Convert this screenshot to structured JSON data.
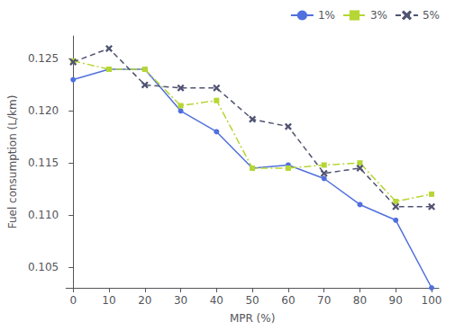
{
  "chart_data": {
    "type": "line",
    "xlabel": "MPR (%)",
    "ylabel": "Fuel consumption (L/km)",
    "x": [
      0,
      10,
      20,
      30,
      40,
      50,
      60,
      70,
      80,
      90,
      100
    ],
    "series": [
      {
        "name": "1%",
        "marker": "circle",
        "line_style": "solid",
        "values": [
          0.123,
          0.124,
          0.124,
          0.12,
          0.118,
          0.1145,
          0.1148,
          0.1135,
          0.111,
          0.1095,
          0.103
        ]
      },
      {
        "name": "3%",
        "marker": "square",
        "line_style": "dashdot",
        "values": [
          0.1248,
          0.124,
          0.124,
          0.1205,
          0.121,
          0.1145,
          0.1145,
          0.1148,
          0.115,
          0.1113,
          0.112
        ]
      },
      {
        "name": "5%",
        "marker": "x",
        "line_style": "dashed",
        "values": [
          0.1247,
          0.126,
          0.1225,
          0.1222,
          0.1222,
          0.1192,
          0.1185,
          0.114,
          0.1145,
          0.1108,
          0.1108
        ]
      }
    ],
    "xlim": [
      -2,
      102
    ],
    "xticks": [
      0,
      10,
      20,
      30,
      40,
      50,
      60,
      70,
      80,
      90,
      100
    ],
    "ylim": [
      0.103,
      0.1272
    ],
    "yticks": [
      0.105,
      {
        "value": 0.11,
        "label": "0.110"
      },
      0.115,
      {
        "value": 0.12,
        "label": "0.120"
      },
      0.125
    ],
    "grid": false,
    "legend": "upper right"
  }
}
